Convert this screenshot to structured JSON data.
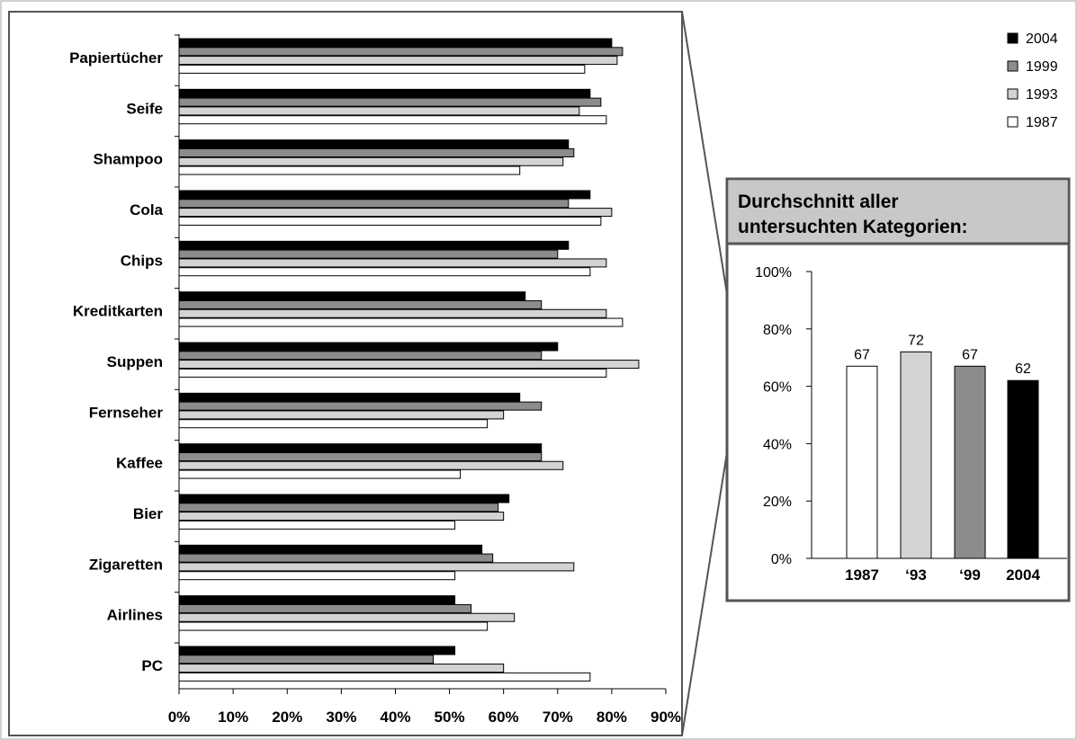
{
  "main_chart": {
    "type": "bar",
    "orientation": "horizontal",
    "categories": [
      "Papiertücher",
      "Seife",
      "Shampoo",
      "Cola",
      "Chips",
      "Kreditkarten",
      "Suppen",
      "Fernseher",
      "Kaffee",
      "Bier",
      "Zigaretten",
      "Airlines",
      "PC"
    ],
    "series": [
      {
        "name": "2004",
        "color": "#000000",
        "values": [
          80,
          76,
          72,
          76,
          72,
          64,
          70,
          63,
          67,
          61,
          56,
          51,
          51
        ]
      },
      {
        "name": "1999",
        "color": "#8c8c8c",
        "values": [
          82,
          78,
          73,
          72,
          70,
          67,
          67,
          67,
          67,
          59,
          58,
          54,
          47
        ]
      },
      {
        "name": "1993",
        "color": "#d3d3d3",
        "values": [
          81,
          74,
          71,
          80,
          79,
          79,
          85,
          60,
          71,
          60,
          73,
          62,
          60
        ]
      },
      {
        "name": "1987",
        "color": "#ffffff",
        "values": [
          75,
          79,
          63,
          78,
          76,
          82,
          79,
          57,
          52,
          51,
          51,
          57,
          76
        ]
      }
    ],
    "xlim": [
      0,
      90
    ],
    "x_ticks": [
      "0%",
      "10%",
      "20%",
      "30%",
      "40%",
      "50%",
      "60%",
      "70%",
      "80%",
      "90%"
    ],
    "legend_position": "top-right"
  },
  "inset": {
    "title_line1": "Durchschnitt aller",
    "title_line2": "untersuchten Kategorien:",
    "header_color": "#c8c8c8"
  },
  "chart_data": {
    "type": "bar",
    "title": "Durchschnitt aller untersuchten Kategorien:",
    "categories": [
      "1987",
      "‘93",
      "‘99",
      "2004"
    ],
    "values": [
      67,
      72,
      67,
      62
    ],
    "data_labels": [
      "67",
      "72",
      "67",
      "62"
    ],
    "colors": [
      "#ffffff",
      "#d3d3d3",
      "#8c8c8c",
      "#000000"
    ],
    "ylim": [
      0,
      100
    ],
    "y_ticks": [
      "0%",
      "20%",
      "40%",
      "60%",
      "80%",
      "100%"
    ]
  }
}
